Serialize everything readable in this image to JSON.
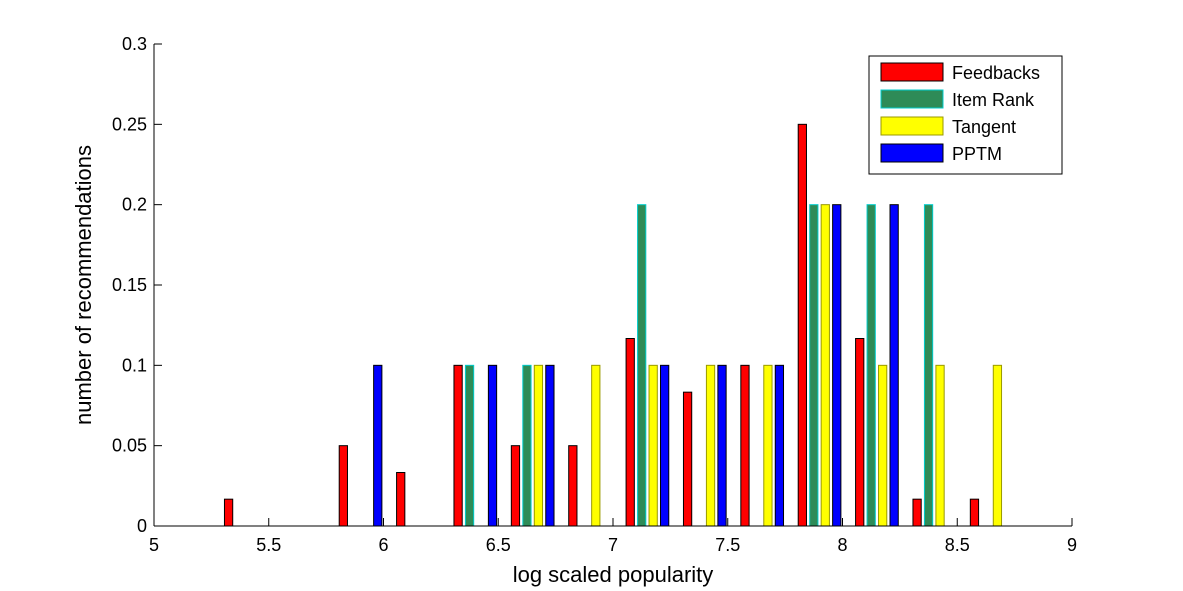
{
  "chart_data": {
    "type": "bar",
    "xlabel": "log scaled popularity",
    "ylabel": "number of recommendations",
    "xlim": [
      5,
      9
    ],
    "ylim": [
      0,
      0.3
    ],
    "xticks": [
      "5",
      "5.5",
      "6",
      "6.5",
      "7",
      "7.5",
      "8",
      "8.5",
      "9"
    ],
    "yticks": [
      "0",
      "0.05",
      "0.1",
      "0.15",
      "0.2",
      "0.25",
      "0.3"
    ],
    "grid": false,
    "legend_position": "top-right",
    "categories": [
      5.15,
      5.4,
      5.65,
      5.9,
      6.15,
      6.4,
      6.65,
      6.9,
      7.15,
      7.4,
      7.65,
      7.9,
      8.15,
      8.4,
      8.65,
      8.9
    ],
    "series": [
      {
        "name": "Feedbacks",
        "color": "#ff0000",
        "edge": "#000000",
        "values": [
          0,
          0.0167,
          0,
          0.05,
          0.0333,
          0.1,
          0.05,
          0.05,
          0.1167,
          0.0833,
          0.1,
          0.25,
          0.1167,
          0.0167,
          0.0167,
          0
        ]
      },
      {
        "name": "Item Rank",
        "color": "#2e8b57",
        "edge": "#00cccc",
        "values": [
          0,
          0,
          0,
          0,
          0,
          0.1,
          0.1,
          0,
          0.2,
          0,
          0,
          0.2,
          0.2,
          0.2,
          0,
          0
        ]
      },
      {
        "name": "Tangent",
        "color": "#ffff00",
        "edge": "#999900",
        "values": [
          0,
          0,
          0,
          0,
          0,
          0,
          0.1,
          0.1,
          0.1,
          0.1,
          0.1,
          0.2,
          0.1,
          0.1,
          0.1,
          0
        ]
      },
      {
        "name": "PPTM",
        "color": "#0000ff",
        "edge": "#000000",
        "values": [
          0,
          0,
          0,
          0.1,
          0,
          0.1,
          0.1,
          0,
          0.1,
          0.1,
          0.1,
          0.2,
          0.2,
          0,
          0,
          0
        ]
      }
    ]
  }
}
